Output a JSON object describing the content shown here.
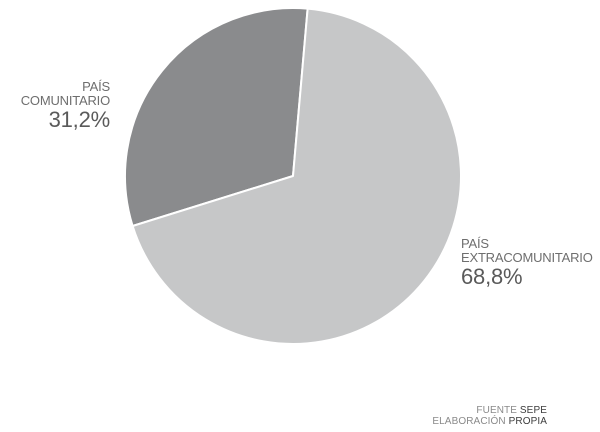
{
  "chart_data": {
    "type": "pie",
    "categories": [
      "PAÍS COMUNITARIO",
      "PAÍS EXTRACOMUNITARIO"
    ],
    "values": [
      31.2,
      68.8
    ],
    "value_labels": [
      "31,2%",
      "68,8%"
    ],
    "label_lines": [
      [
        "PAÍS",
        "COMUNITARIO"
      ],
      [
        "PAÍS",
        "EXTRACOMUNITARIO"
      ]
    ],
    "colors": [
      "#8a8b8d",
      "#c6c7c8"
    ],
    "start_angle_deg": 5
  },
  "source": {
    "line1_prefix": "FUENTE ",
    "line1_emphasis": "SEPE",
    "line2_prefix": "ELABORACIÓN ",
    "line2_emphasis": "PROPIA"
  }
}
